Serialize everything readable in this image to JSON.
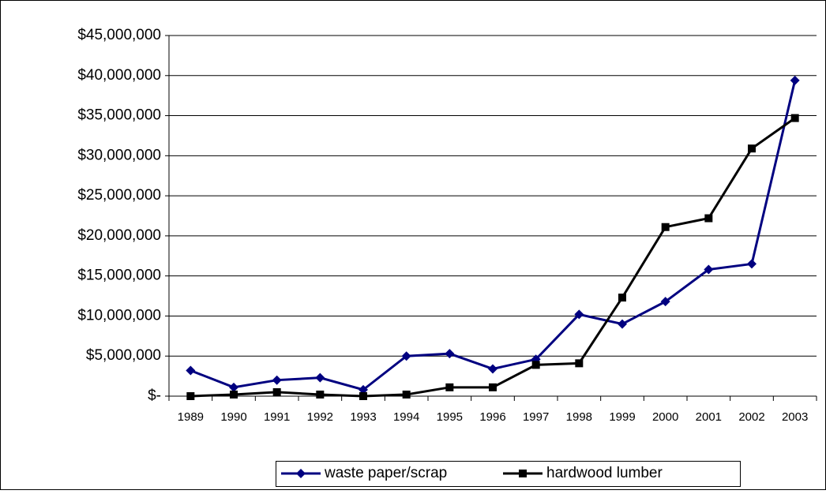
{
  "chart_data": {
    "type": "line",
    "categories": [
      "1989",
      "1990",
      "1991",
      "1992",
      "1993",
      "1994",
      "1995",
      "1996",
      "1997",
      "1998",
      "1999",
      "2000",
      "2001",
      "2002",
      "2003"
    ],
    "series": [
      {
        "name": "waste paper/scrap",
        "color": "#000080",
        "marker": "diamond",
        "values": [
          3200000,
          1100000,
          2000000,
          2300000,
          800000,
          5000000,
          5300000,
          3400000,
          4600000,
          10200000,
          9000000,
          11800000,
          15800000,
          16500000,
          39400000
        ]
      },
      {
        "name": "hardwood lumber",
        "color": "#000000",
        "marker": "square",
        "values": [
          0,
          200000,
          500000,
          200000,
          0,
          200000,
          1100000,
          1100000,
          3900000,
          4100000,
          12300000,
          21100000,
          22200000,
          30900000,
          34700000
        ]
      }
    ],
    "ylim": [
      0,
      45000000
    ],
    "yticks": [
      {
        "value": 0,
        "label": "$-"
      },
      {
        "value": 5000000,
        "label": "$5,000,000"
      },
      {
        "value": 10000000,
        "label": "$10,000,000"
      },
      {
        "value": 15000000,
        "label": "$15,000,000"
      },
      {
        "value": 20000000,
        "label": "$20,000,000"
      },
      {
        "value": 25000000,
        "label": "$25,000,000"
      },
      {
        "value": 30000000,
        "label": "$30,000,000"
      },
      {
        "value": 35000000,
        "label": "$35,000,000"
      },
      {
        "value": 40000000,
        "label": "$40,000,000"
      },
      {
        "value": 45000000,
        "label": "$45,000,000"
      }
    ],
    "grid": true,
    "legend": "bottom"
  }
}
